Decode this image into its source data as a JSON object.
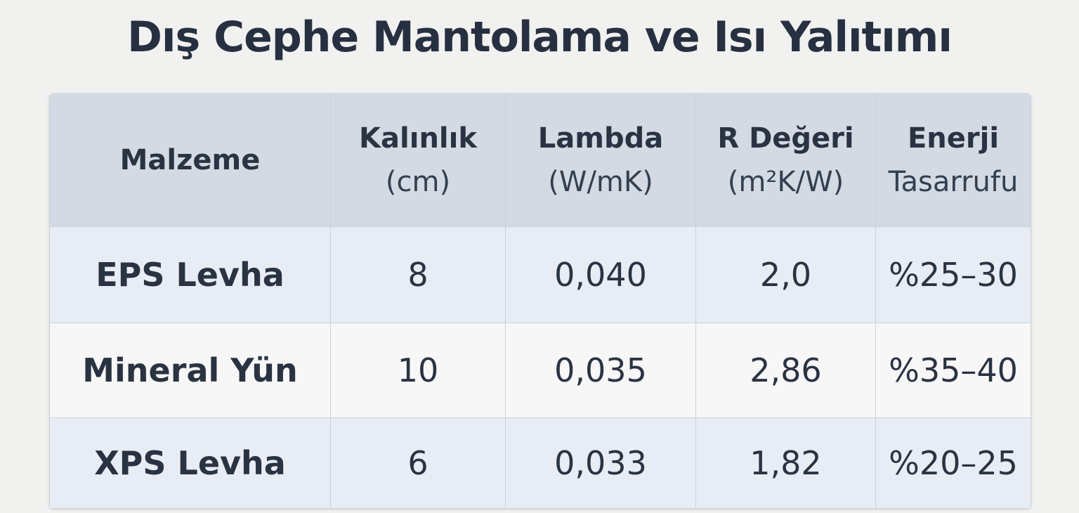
{
  "header": {
    "title": "Dış Cephe Mantolama ve Isı Yalıtımı"
  },
  "table": {
    "columns": [
      [
        "Malzeme"
      ],
      [
        "Kalınlık",
        "(cm)"
      ],
      [
        "Lambda",
        "(W/mK)"
      ],
      [
        "R Değeri",
        "(m²K/W)"
      ],
      [
        "Enerji",
        "Tasarrufu"
      ]
    ],
    "rows": [
      [
        "EPS Levha",
        "8",
        "0,040",
        "2,0",
        "%25–30"
      ],
      [
        "Mineral Yün",
        "10",
        "0,035",
        "2,86",
        "%35–40"
      ],
      [
        "XPS Levha",
        "6",
        "0,033",
        "1,82",
        "%20–25"
      ]
    ]
  }
}
